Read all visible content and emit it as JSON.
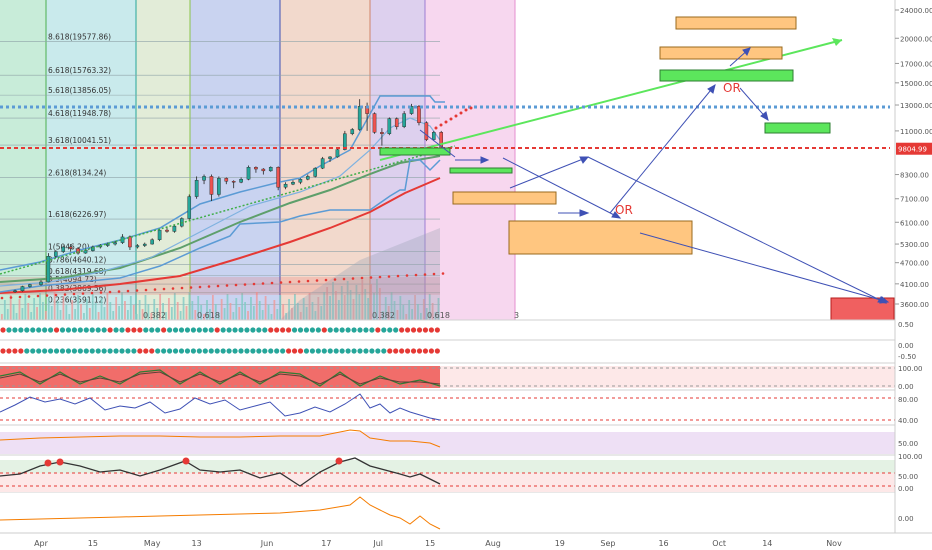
{
  "chart_data": {
    "type": "candlestick",
    "y_scale": "log",
    "ylim": [
      3300,
      26000
    ],
    "price_axis_ticks": [
      "24000.00",
      "20000.00",
      "17000.00",
      "15000.00",
      "13000.00",
      "11000.00",
      "9804.99",
      "8300.00",
      "7100.00",
      "6100.00",
      "5300.00",
      "4700.00",
      "4100.00",
      "3600.00"
    ],
    "current_price_label": "9804.99",
    "x_tick_labels": [
      {
        "label": "Apr",
        "date": "2019-04-01"
      },
      {
        "label": "15",
        "date": "2019-04-15"
      },
      {
        "label": "May",
        "date": "2019-05-01"
      },
      {
        "label": "13",
        "date": "2019-05-13"
      },
      {
        "label": "Jun",
        "date": "2019-06-01"
      },
      {
        "label": "17",
        "date": "2019-06-17"
      },
      {
        "label": "Jul",
        "date": "2019-07-01"
      },
      {
        "label": "15",
        "date": "2019-07-15"
      },
      {
        "label": "Aug",
        "date": "2019-08-01"
      },
      {
        "label": "19",
        "date": "2019-08-19"
      },
      {
        "label": "Sep",
        "date": "2019-09-01"
      },
      {
        "label": "16",
        "date": "2019-09-16"
      },
      {
        "label": "Oct",
        "date": "2019-10-01"
      },
      {
        "label": "14",
        "date": "2019-10-14"
      },
      {
        "label": "Nov",
        "date": "2019-11-01"
      }
    ],
    "fib_levels": [
      {
        "label": "8.618(19577.86)",
        "price": 19577.86
      },
      {
        "label": "6.618(15763.32)",
        "price": 15763.32
      },
      {
        "label": "5.618(13856.05)",
        "price": 13856.05
      },
      {
        "label": "4.618(11948.78)",
        "price": 11948.78
      },
      {
        "label": "3.618(10041.51)",
        "price": 10041.51
      },
      {
        "label": "2.618(8134.24)",
        "price": 8134.24
      },
      {
        "label": "1.618(6226.97)",
        "price": 6226.97
      },
      {
        "label": "1(5046.20)",
        "price": 5046.2
      },
      {
        "label": "0.786(4640.12)",
        "price": 4640.12
      },
      {
        "label": "0.618(4319.68)",
        "price": 4319.68
      },
      {
        "label": "0.5(4094.72)",
        "price": 4094.72
      },
      {
        "label": "0.382(3869.56)",
        "price": 3869.56
      },
      {
        "label": "0.236(3591.12)",
        "price": 3591.12
      }
    ],
    "fib_time_labels": [
      "0.382",
      "0.618",
      "0.382",
      "0.618",
      "3"
    ],
    "annotations": [
      "OR",
      "OR"
    ],
    "candles": [
      [
        "2019-03-25",
        3900,
        3950,
        3870,
        3920
      ],
      [
        "2019-03-27",
        3920,
        4050,
        3900,
        4030
      ],
      [
        "2019-03-29",
        4030,
        4100,
        4000,
        4080
      ],
      [
        "2019-04-01",
        4080,
        4200,
        4050,
        4150
      ],
      [
        "2019-04-03",
        4150,
        5000,
        4140,
        4900
      ],
      [
        "2019-04-05",
        4900,
        5100,
        4850,
        5050
      ],
      [
        "2019-04-07",
        5050,
        5250,
        5000,
        5200
      ],
      [
        "2019-04-09",
        5200,
        5300,
        5050,
        5150
      ],
      [
        "2019-04-11",
        5150,
        5200,
        4950,
        5000
      ],
      [
        "2019-04-13",
        5000,
        5150,
        4980,
        5080
      ],
      [
        "2019-04-15",
        5080,
        5250,
        5050,
        5200
      ],
      [
        "2019-04-17",
        5200,
        5300,
        5150,
        5250
      ],
      [
        "2019-04-19",
        5250,
        5350,
        5200,
        5300
      ],
      [
        "2019-04-21",
        5300,
        5400,
        5250,
        5350
      ],
      [
        "2019-04-23",
        5350,
        5650,
        5300,
        5550
      ],
      [
        "2019-04-25",
        5550,
        5600,
        5100,
        5200
      ],
      [
        "2019-04-27",
        5200,
        5300,
        5150,
        5250
      ],
      [
        "2019-04-29",
        5250,
        5350,
        5200,
        5300
      ],
      [
        "2019-05-01",
        5300,
        5500,
        5280,
        5450
      ],
      [
        "2019-05-03",
        5450,
        5850,
        5400,
        5800
      ],
      [
        "2019-05-05",
        5800,
        5900,
        5700,
        5750
      ],
      [
        "2019-05-07",
        5750,
        6000,
        5700,
        5950
      ],
      [
        "2019-05-09",
        5950,
        6300,
        5900,
        6250
      ],
      [
        "2019-05-11",
        6250,
        7300,
        6200,
        7200
      ],
      [
        "2019-05-13",
        7200,
        8200,
        7100,
        8000
      ],
      [
        "2019-05-15",
        8000,
        8300,
        7800,
        8200
      ],
      [
        "2019-05-17",
        8200,
        8300,
        7000,
        7300
      ],
      [
        "2019-05-19",
        7300,
        8200,
        7200,
        8100
      ],
      [
        "2019-05-21",
        8100,
        8150,
        7800,
        7950
      ],
      [
        "2019-05-23",
        7950,
        8000,
        7600,
        7900
      ],
      [
        "2019-05-25",
        7900,
        8150,
        7850,
        8050
      ],
      [
        "2019-05-27",
        8050,
        8800,
        8000,
        8700
      ],
      [
        "2019-05-29",
        8700,
        8750,
        8400,
        8600
      ],
      [
        "2019-05-31",
        8600,
        8650,
        8300,
        8500
      ],
      [
        "2019-06-02",
        8500,
        8750,
        8450,
        8700
      ],
      [
        "2019-06-04",
        8700,
        8750,
        7500,
        7650
      ],
      [
        "2019-06-06",
        7650,
        7900,
        7550,
        7800
      ],
      [
        "2019-06-08",
        7800,
        8000,
        7750,
        7900
      ],
      [
        "2019-06-10",
        7900,
        8100,
        7800,
        8050
      ],
      [
        "2019-06-12",
        8050,
        8300,
        8000,
        8200
      ],
      [
        "2019-06-14",
        8200,
        8700,
        8150,
        8650
      ],
      [
        "2019-06-16",
        8650,
        9300,
        8600,
        9200
      ],
      [
        "2019-06-18",
        9200,
        9350,
        9000,
        9300
      ],
      [
        "2019-06-20",
        9300,
        9800,
        9250,
        9750
      ],
      [
        "2019-06-22",
        9750,
        11000,
        9700,
        10800
      ],
      [
        "2019-06-24",
        10800,
        11200,
        10700,
        11100
      ],
      [
        "2019-06-26",
        11100,
        13500,
        11000,
        12900
      ],
      [
        "2019-06-28",
        12900,
        13200,
        11000,
        12300
      ],
      [
        "2019-06-30",
        12300,
        12400,
        10800,
        10900
      ],
      [
        "2019-07-02",
        10900,
        11200,
        10000,
        10800
      ],
      [
        "2019-07-04",
        10800,
        12000,
        10700,
        11900
      ],
      [
        "2019-07-06",
        11900,
        12000,
        11100,
        11300
      ],
      [
        "2019-07-08",
        11300,
        12500,
        11200,
        12300
      ],
      [
        "2019-07-10",
        12300,
        13100,
        12200,
        12900
      ],
      [
        "2019-07-12",
        12900,
        13000,
        11400,
        11600
      ],
      [
        "2019-07-14",
        11600,
        11700,
        10300,
        10400
      ],
      [
        "2019-07-16",
        10400,
        11000,
        10300,
        10900
      ],
      [
        "2019-07-18",
        10900,
        11000,
        9500,
        9805
      ]
    ],
    "series": [
      {
        "name": "",
        "color": "#e53935"
      },
      {
        "name": "",
        "color": "#43a047"
      },
      {
        "name": "",
        "color": "#5b9bd5"
      }
    ],
    "indicator_axes": [
      {
        "ticks": [
          "0.50",
          "0.00",
          "-0.50"
        ]
      },
      {
        "ticks": [
          "100.00",
          "0.00"
        ]
      },
      {
        "ticks": [
          "80.00",
          "40.00"
        ]
      },
      {
        "ticks": [
          "50.00"
        ]
      },
      {
        "ticks": [
          "100.00",
          "50.00",
          "0.00"
        ]
      },
      {
        "ticks": [
          "0.00"
        ]
      }
    ]
  },
  "colors": {
    "bull": "#26a69a",
    "bear": "#ef5350",
    "redline": "#e53935",
    "green": "#43a047",
    "blue": "#3f51b5",
    "orange": "#ffc680"
  }
}
